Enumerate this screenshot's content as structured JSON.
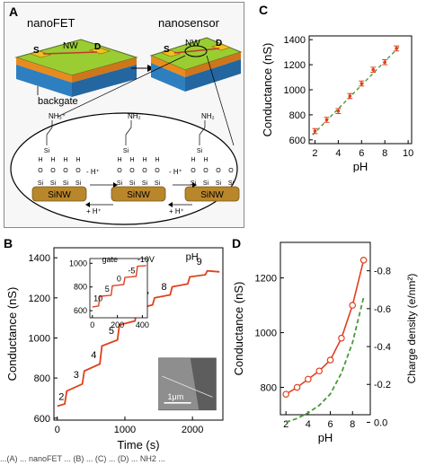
{
  "panels": {
    "a": {
      "letter": "A",
      "label_nanofet": "nanoFET",
      "label_nanosensor": "nanosensor",
      "label_s": "S",
      "label_d": "D",
      "label_nw": "NW",
      "label_backgate": "backgate",
      "chem": {
        "sinw": "SiNW",
        "minus_h": "- H",
        "plus_h": "+ H",
        "nh3": "NH",
        "nh2": "NH",
        "si": "Si",
        "o": "O",
        "h": "H"
      }
    },
    "b": {
      "letter": "B"
    },
    "c": {
      "letter": "C"
    },
    "d": {
      "letter": "D"
    }
  },
  "chart_data": [
    {
      "panel": "B",
      "type": "line",
      "xlabel": "Time (s)",
      "ylabel": "Conductance (nS)",
      "xlim": [
        -50,
        2450
      ],
      "ylim": [
        590,
        1450
      ],
      "xticks": [
        0,
        1000,
        2000
      ],
      "yticks": [
        600,
        800,
        1000,
        1200,
        1400
      ],
      "x": [
        0,
        110,
        140,
        370,
        400,
        630,
        660,
        890,
        920,
        1150,
        1180,
        1410,
        1440,
        1670,
        1700,
        1930,
        1960,
        2190,
        2220,
        2400
      ],
      "y": [
        660,
        670,
        735,
        770,
        835,
        870,
        960,
        990,
        1065,
        1085,
        1145,
        1165,
        1200,
        1215,
        1255,
        1270,
        1305,
        1315,
        1335,
        1330
      ],
      "step_labels": [
        {
          "text": "2",
          "x": 60,
          "y": 690
        },
        {
          "text": "3",
          "x": 280,
          "y": 800
        },
        {
          "text": "4",
          "x": 540,
          "y": 900
        },
        {
          "text": "5",
          "x": 800,
          "y": 1020
        },
        {
          "text": "6",
          "x": 1060,
          "y": 1115
        },
        {
          "text": "7",
          "x": 1320,
          "y": 1195
        },
        {
          "text": "8",
          "x": 1580,
          "y": 1240
        },
        {
          "text": "9",
          "x": 2100,
          "y": 1365
        }
      ],
      "annotation": "pH",
      "scale_bar": "1μm",
      "inset": {
        "type": "line",
        "label": "gate",
        "xlim": [
          -20,
          440
        ],
        "ylim": [
          540,
          1040
        ],
        "xticks": [
          0,
          200,
          400
        ],
        "yticks": [
          600,
          800,
          1000
        ],
        "x": [
          0,
          50,
          60,
          150,
          160,
          250,
          260,
          350,
          360,
          430
        ],
        "y": [
          630,
          640,
          720,
          730,
          810,
          820,
          880,
          890,
          975,
          980
        ],
        "step_labels": [
          {
            "text": "10",
            "x": 10,
            "y": 680
          },
          {
            "text": "5",
            "x": 100,
            "y": 760
          },
          {
            "text": "0",
            "x": 195,
            "y": 845
          },
          {
            "text": "-5",
            "x": 285,
            "y": 915
          },
          {
            "text": "-10V",
            "x": 360,
            "y": 1010
          }
        ]
      }
    },
    {
      "panel": "C",
      "type": "scatter",
      "xlabel": "pH",
      "ylabel": "Conductance (nS)",
      "xlim": [
        1.5,
        10.3
      ],
      "ylim": [
        570,
        1430
      ],
      "xticks": [
        2,
        4,
        6,
        8,
        10
      ],
      "yticks": [
        600,
        800,
        1000,
        1200,
        1400
      ],
      "x": [
        2,
        3,
        4,
        5,
        6,
        7,
        8,
        9
      ],
      "y": [
        670,
        760,
        830,
        950,
        1050,
        1160,
        1220,
        1330
      ],
      "error": [
        20,
        20,
        20,
        20,
        20,
        20,
        20,
        20
      ],
      "fit": {
        "x": [
          1.8,
          9.2
        ],
        "y": [
          640,
          1340
        ]
      }
    },
    {
      "panel": "D",
      "type": "line",
      "xlabel": "pH",
      "ylabel": "Conductance (nS)",
      "ylabel_right": "Charge density (e/nm²)",
      "xlim": [
        1.5,
        9.6
      ],
      "ylim": [
        700,
        1330
      ],
      "xticks": [
        2,
        4,
        6,
        8
      ],
      "yticks": [
        800,
        1000,
        1200
      ],
      "y2lim": [
        -0.04,
        -0.95
      ],
      "y2ticks": [
        0.0,
        -0.2,
        -0.4,
        -0.6,
        -0.8
      ],
      "y2ticklabels": [
        "0.0",
        "-0.2",
        "-0.4",
        "-0.6",
        "-0.8"
      ],
      "series": [
        {
          "x": [
            2,
            3,
            4,
            5,
            6,
            7,
            8,
            9
          ],
          "y": [
            775,
            800,
            830,
            860,
            900,
            980,
            1100,
            1265
          ],
          "color": "#e04020",
          "markers": true
        },
        {
          "x": [
            2,
            3,
            4,
            5,
            6,
            7,
            8,
            9
          ],
          "y2": [
            0.0,
            -0.02,
            -0.05,
            -0.09,
            -0.15,
            -0.26,
            -0.42,
            -0.66
          ],
          "color": "#4a9a3a",
          "style": "dashed"
        }
      ]
    }
  ],
  "caption": "...(A) ... nanoFET ... (B) ... (C) ... (D) ... NH2 ..."
}
